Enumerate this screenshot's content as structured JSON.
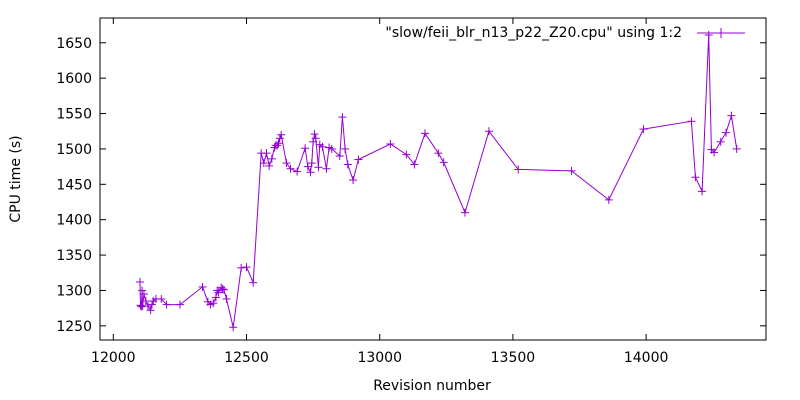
{
  "chart_data": {
    "type": "line",
    "title": "",
    "xlabel": "Revision number",
    "ylabel": "CPU time (s)",
    "xlim": [
      11950,
      14450
    ],
    "ylim": [
      1230,
      1685
    ],
    "x_ticks": [
      12000,
      12500,
      13000,
      13500,
      14000
    ],
    "y_ticks": [
      1250,
      1300,
      1350,
      1400,
      1450,
      1500,
      1550,
      1600,
      1650
    ],
    "grid": false,
    "legend_position": "top-right",
    "color": "#9400d3",
    "series": [
      {
        "name": "\"slow/feii_blr_n13_p22_Z20.cpu\" using 1:2",
        "x": [
          12100,
          12102,
          12105,
          12108,
          12110,
          12115,
          12122,
          12130,
          12140,
          12145,
          12150,
          12160,
          12180,
          12200,
          12250,
          12335,
          12355,
          12365,
          12375,
          12385,
          12390,
          12395,
          12405,
          12410,
          12415,
          12425,
          12450,
          12480,
          12500,
          12525,
          12555,
          12565,
          12575,
          12585,
          12595,
          12605,
          12610,
          12615,
          12620,
          12625,
          12630,
          12650,
          12665,
          12690,
          12720,
          12730,
          12740,
          12745,
          12750,
          12755,
          12760,
          12770,
          12775,
          12785,
          12800,
          12810,
          12820,
          12850,
          12860,
          12870,
          12880,
          12900,
          12920,
          13040,
          13100,
          13130,
          13170,
          13220,
          13240,
          13320,
          13410,
          13520,
          13720,
          13860,
          13990,
          14170,
          14185,
          14210,
          14235,
          14245,
          14255,
          14280,
          14300,
          14320,
          14340
        ],
        "y": [
          1312,
          1279,
          1277,
          1300,
          1278,
          1295,
          1285,
          1278,
          1272,
          1280,
          1285,
          1288,
          1288,
          1280,
          1280,
          1305,
          1284,
          1280,
          1282,
          1290,
          1300,
          1297,
          1304,
          1302,
          1301,
          1288,
          1248,
          1332,
          1333,
          1311,
          1494,
          1480,
          1494,
          1476,
          1486,
          1502,
          1505,
          1505,
          1508,
          1515,
          1520,
          1480,
          1472,
          1468,
          1501,
          1475,
          1467,
          1480,
          1510,
          1521,
          1515,
          1474,
          1506,
          1503,
          1472,
          1502,
          1500,
          1490,
          1545,
          1500,
          1478,
          1456,
          1485,
          1507,
          1492,
          1478,
          1522,
          1494,
          1481,
          1410,
          1525,
          1471,
          1469,
          1428,
          1528,
          1539,
          1460,
          1440,
          1661,
          1499,
          1495,
          1510,
          1523,
          1547,
          1500
        ]
      }
    ]
  }
}
